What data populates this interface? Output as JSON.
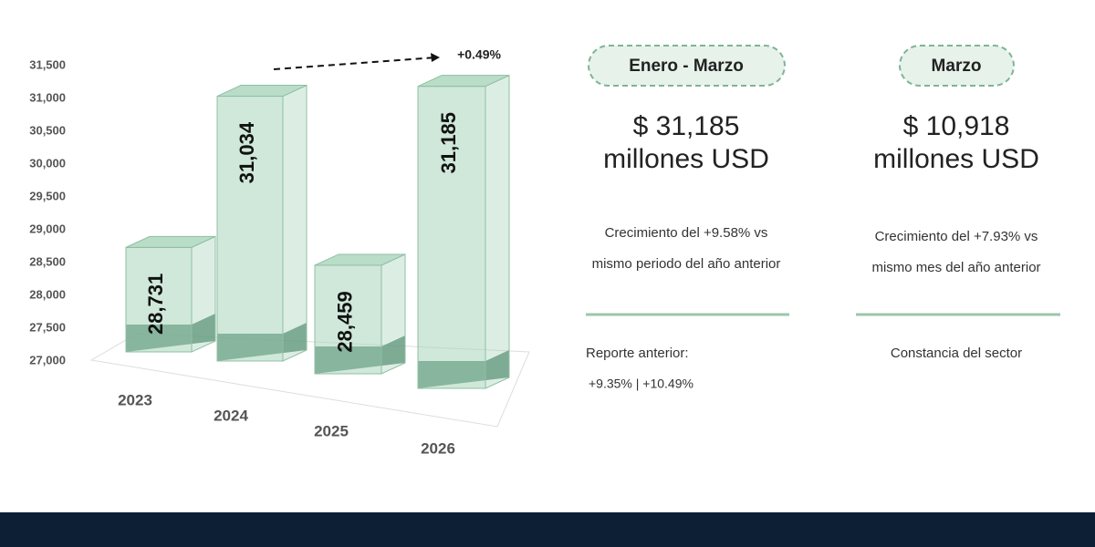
{
  "chart_data": {
    "type": "bar3d",
    "categories": [
      "2023",
      "2024",
      "2025",
      "2026"
    ],
    "values": [
      28731,
      31034,
      28459,
      31185
    ],
    "value_labels": [
      "28,731",
      "31,034",
      "28,459",
      "31,185"
    ],
    "color": "#a8d5bc",
    "ylim": [
      27000,
      31500
    ],
    "yticks": [
      {
        "value": 27000,
        "label": "27,000"
      },
      {
        "value": 27500,
        "label": "27,500"
      },
      {
        "value": 28000,
        "label": "28,000"
      },
      {
        "value": 28500,
        "label": "28,500"
      },
      {
        "value": 29000,
        "label": "29,000"
      },
      {
        "value": 29500,
        "label": "29,500"
      },
      {
        "value": 30000,
        "label": "30,000"
      },
      {
        "value": 30500,
        "label": "30,500"
      },
      {
        "value": 31000,
        "label": "31,000"
      },
      {
        "value": 31500,
        "label": "31,500"
      }
    ],
    "grid": false,
    "annotation": "+0.49%"
  },
  "panels": [
    {
      "title": "Enero - Marzo",
      "amount": "$ 31,185",
      "unit": "millones USD",
      "growth": [
        "Crecimiento del +9.58% vs",
        "mismo periodo del año anterior"
      ],
      "note": [
        "Reporte anterior:",
        "+9.35% | +10.49%"
      ]
    },
    {
      "title": "Marzo",
      "amount": "$ 10,918",
      "unit": "millones USD",
      "growth": [
        "Crecimiento del +7.93% vs",
        "mismo mes del año anterior"
      ],
      "note": [
        "Constancia del sector"
      ]
    }
  ]
}
